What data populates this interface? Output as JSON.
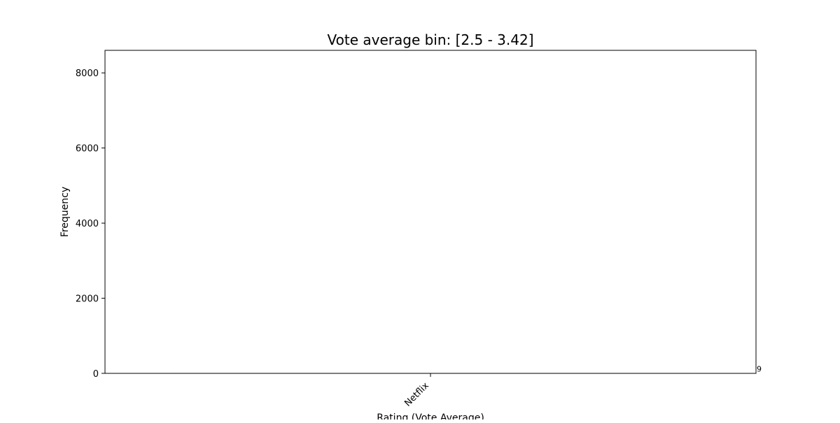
{
  "chart_data": {
    "type": "bar",
    "title": "Vote average bin: [2.5 - 3.42]",
    "xlabel": "Rating (Vote Average)",
    "ylabel": "Frequency",
    "categories": [
      "Netflix"
    ],
    "values": [
      9
    ],
    "ylim": [
      0,
      8600
    ],
    "yticks": [
      0,
      2000,
      4000,
      6000,
      8000
    ],
    "grid": false,
    "bar_color": "#1f3b8c",
    "bar_annotations": [
      "9"
    ]
  }
}
